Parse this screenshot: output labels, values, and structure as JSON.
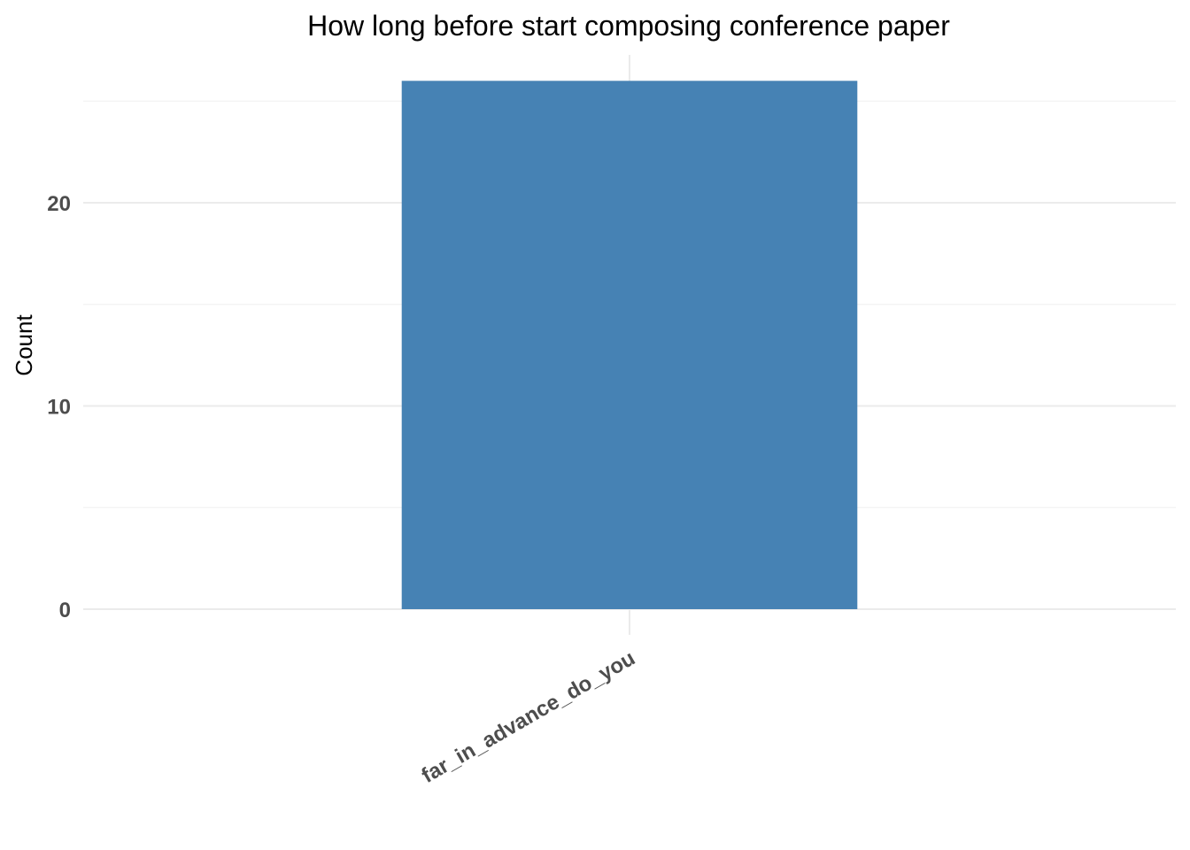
{
  "chart_data": {
    "type": "bar",
    "title": "How long before start composing conference paper",
    "xlabel": "",
    "ylabel": "Count",
    "categories": [
      "far_in_advance_do_you"
    ],
    "values": [
      26
    ],
    "ylim": [
      0,
      27.3
    ],
    "yticks": [
      0,
      10,
      20
    ],
    "y_minor_ticks": [
      5,
      15,
      25
    ],
    "grid": true,
    "legend": "none",
    "bar_color": "#4682B4"
  }
}
